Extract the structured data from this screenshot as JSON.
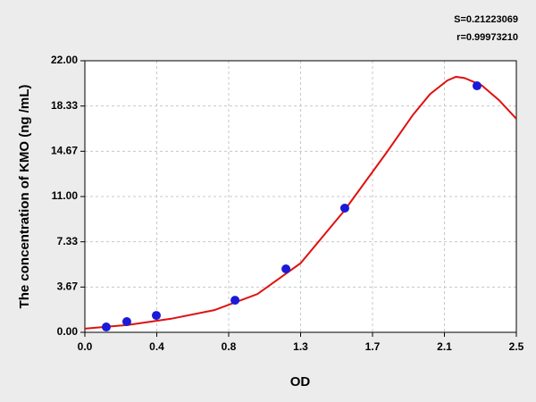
{
  "chart_data": {
    "type": "scatter",
    "annotations": [
      "S=0.21223069",
      "r=0.99973210"
    ],
    "x_label": "OD",
    "y_label": "The concentration of KMO (ng /mL)",
    "xlim": [
      0,
      2.5
    ],
    "xticks": [
      {
        "value": 0,
        "label": "0.0"
      },
      {
        "value": 0.4167,
        "label": "0.4"
      },
      {
        "value": 0.8333,
        "label": "0.8"
      },
      {
        "value": 1.25,
        "label": "1.3"
      },
      {
        "value": 1.6667,
        "label": "1.7"
      },
      {
        "value": 2.0833,
        "label": "2.1"
      },
      2.5
    ],
    "ylim": [
      0,
      22
    ],
    "yticks": [
      {
        "value": 0,
        "label": "0.00"
      },
      {
        "value": 3.667,
        "label": "3.67"
      },
      {
        "value": 7.333,
        "label": "7.33"
      },
      {
        "value": 11,
        "label": "11.00"
      },
      {
        "value": 14.667,
        "label": "14.67"
      },
      {
        "value": 18.333,
        "label": "18.33"
      },
      {
        "value": 22,
        "label": "22.00"
      }
    ],
    "grid": true,
    "series": [
      {
        "type": "line",
        "color": "#e01010",
        "x": [
          0,
          0.25,
          0.5,
          0.75,
          1.0,
          1.25,
          1.5,
          1.75,
          1.9,
          2.0,
          2.1,
          2.15,
          2.2,
          2.3,
          2.4,
          2.5
        ],
        "values": [
          0.3,
          0.6,
          1.1,
          1.8,
          3.1,
          5.6,
          9.8,
          14.6,
          17.6,
          19.3,
          20.4,
          20.7,
          20.6,
          20.0,
          18.8,
          17.3
        ]
      },
      {
        "type": "scatter",
        "color": "#1a1ad8",
        "x": [
          0.124,
          0.243,
          0.414,
          0.87,
          1.165,
          1.506,
          2.272
        ],
        "values": [
          0.43,
          0.87,
          1.37,
          2.6,
          5.14,
          10.06,
          19.97
        ]
      }
    ]
  }
}
